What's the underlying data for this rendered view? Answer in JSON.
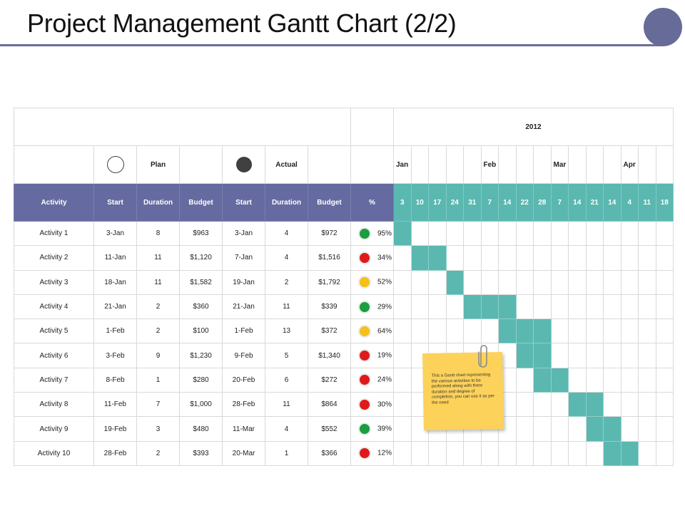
{
  "page": {
    "title": "Project Management Gantt Chart (2/2)"
  },
  "colors": {
    "accent": "#676b98",
    "bar": "#5ab8b0",
    "header": "#656aa0",
    "green": "#1a9e3f",
    "red": "#e01a1a",
    "yellow": "#f5c018",
    "note": "#fdd25a"
  },
  "gantt": {
    "year": "2012",
    "plan_label": "Plan",
    "actual_label": "Actual",
    "plan_icon": "open-circle-icon",
    "actual_icon": "filled-circle-icon",
    "months": [
      "Jan",
      "",
      "",
      "",
      "",
      "Feb",
      "",
      "",
      "",
      "Mar",
      "",
      "",
      "",
      "Apr",
      "",
      ""
    ],
    "headers": [
      "Activity",
      "Start",
      "Duration",
      "Budget",
      "Start",
      "Duration",
      "Budget",
      "%"
    ],
    "weeks": [
      "3",
      "10",
      "17",
      "24",
      "31",
      "7",
      "14",
      "22",
      "28",
      "7",
      "14",
      "21",
      "14",
      "4",
      "11",
      "18"
    ],
    "rows": [
      {
        "activity": "Activity 1",
        "plan_start": "3-Jan",
        "plan_duration": "8",
        "plan_budget": "$963",
        "actual_start": "3-Jan",
        "actual_duration": "4",
        "actual_budget": "$972",
        "status": "green",
        "percent": "95%",
        "bars": [
          0
        ]
      },
      {
        "activity": "Activity 2",
        "plan_start": "11-Jan",
        "plan_duration": "11",
        "plan_budget": "$1,120",
        "actual_start": "7-Jan",
        "actual_duration": "4",
        "actual_budget": "$1,516",
        "status": "red",
        "percent": "34%",
        "bars": [
          1,
          2
        ]
      },
      {
        "activity": "Activity 3",
        "plan_start": "18-Jan",
        "plan_duration": "11",
        "plan_budget": "$1,582",
        "actual_start": "19-Jan",
        "actual_duration": "2",
        "actual_budget": "$1,792",
        "status": "yellow",
        "percent": "52%",
        "bars": [
          3
        ]
      },
      {
        "activity": "Activity 4",
        "plan_start": "21-Jan",
        "plan_duration": "2",
        "plan_budget": "$360",
        "actual_start": "21-Jan",
        "actual_duration": "11",
        "actual_budget": "$339",
        "status": "green",
        "percent": "29%",
        "bars": [
          4,
          5,
          6
        ]
      },
      {
        "activity": "Activity 5",
        "plan_start": "1-Feb",
        "plan_duration": "2",
        "plan_budget": "$100",
        "actual_start": "1-Feb",
        "actual_duration": "13",
        "actual_budget": "$372",
        "status": "yellow",
        "percent": "64%",
        "bars": [
          6,
          7,
          8
        ]
      },
      {
        "activity": "Activity 6",
        "plan_start": "3-Feb",
        "plan_duration": "9",
        "plan_budget": "$1,230",
        "actual_start": "9-Feb",
        "actual_duration": "5",
        "actual_budget": "$1,340",
        "status": "red",
        "percent": "19%",
        "bars": [
          7,
          8
        ]
      },
      {
        "activity": "Activity 7",
        "plan_start": "8-Feb",
        "plan_duration": "1",
        "plan_budget": "$280",
        "actual_start": "20-Feb",
        "actual_duration": "6",
        "actual_budget": "$272",
        "status": "red",
        "percent": "24%",
        "bars": [
          8,
          9
        ]
      },
      {
        "activity": "Activity 8",
        "plan_start": "11-Feb",
        "plan_duration": "7",
        "plan_budget": "$1,000",
        "actual_start": "28-Feb",
        "actual_duration": "11",
        "actual_budget": "$864",
        "status": "red",
        "percent": "30%",
        "bars": [
          10,
          11
        ]
      },
      {
        "activity": "Activity 9",
        "plan_start": "19-Feb",
        "plan_duration": "3",
        "plan_budget": "$480",
        "actual_start": "11-Mar",
        "actual_duration": "4",
        "actual_budget": "$552",
        "status": "green",
        "percent": "39%",
        "bars": [
          11,
          12
        ]
      },
      {
        "activity": "Activity 10",
        "plan_start": "28-Feb",
        "plan_duration": "2",
        "plan_budget": "$393",
        "actual_start": "20-Mar",
        "actual_duration": "1",
        "actual_budget": "$366",
        "status": "red",
        "percent": "12%",
        "bars": [
          12,
          13
        ]
      }
    ]
  },
  "note": {
    "text": "This a Gantt chart representing the various activities to be performed along with there duration and degree of completion, you can use it as per the need",
    "icon": "paperclip-icon"
  }
}
